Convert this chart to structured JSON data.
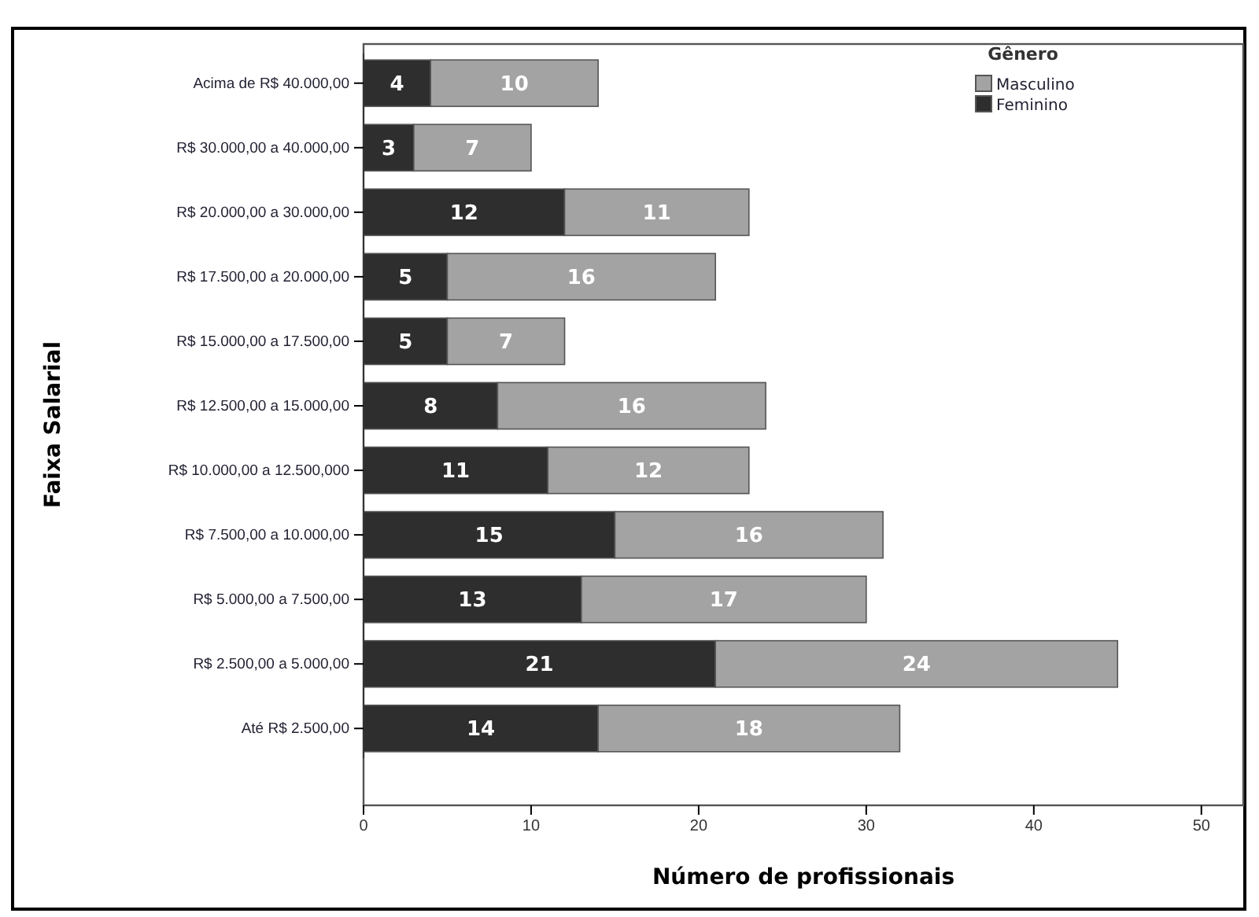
{
  "chart_data": {
    "type": "bar",
    "orientation": "horizontal",
    "stacked": true,
    "xlabel": "Número de profissionais",
    "ylabel": "Faixa Salarial",
    "legend_title": "Gênero",
    "legend": "top right",
    "data_labels": true,
    "grid": false,
    "categories": [
      "Acima de R$ 40.000,00",
      "R$ 30.000,00 a 40.000,00",
      "R$ 20.000,00 a 30.000,00",
      "R$ 17.500,00 a 20.000,00",
      "R$ 15.000,00 a 17.500,00",
      "R$ 12.500,00 a 15.000,00",
      "R$ 10.000,00 a 12.500,000",
      "R$ 7.500,00 a 10.000,00",
      "R$ 5.000,00 a 7.500,00",
      "R$ 2.500,00 a 5.000,00",
      "Até R$ 2.500,00"
    ],
    "series": [
      {
        "name": "Feminino",
        "color": "#2e2e2e",
        "values": [
          4,
          3,
          12,
          5,
          5,
          8,
          11,
          15,
          13,
          21,
          14
        ]
      },
      {
        "name": "Masculino",
        "color": "#a3a3a3",
        "values": [
          10,
          7,
          11,
          16,
          7,
          16,
          12,
          16,
          17,
          24,
          18
        ]
      }
    ],
    "xlim": [
      0,
      52.5
    ],
    "xticks": [
      0,
      10,
      20,
      30,
      40,
      50
    ]
  }
}
